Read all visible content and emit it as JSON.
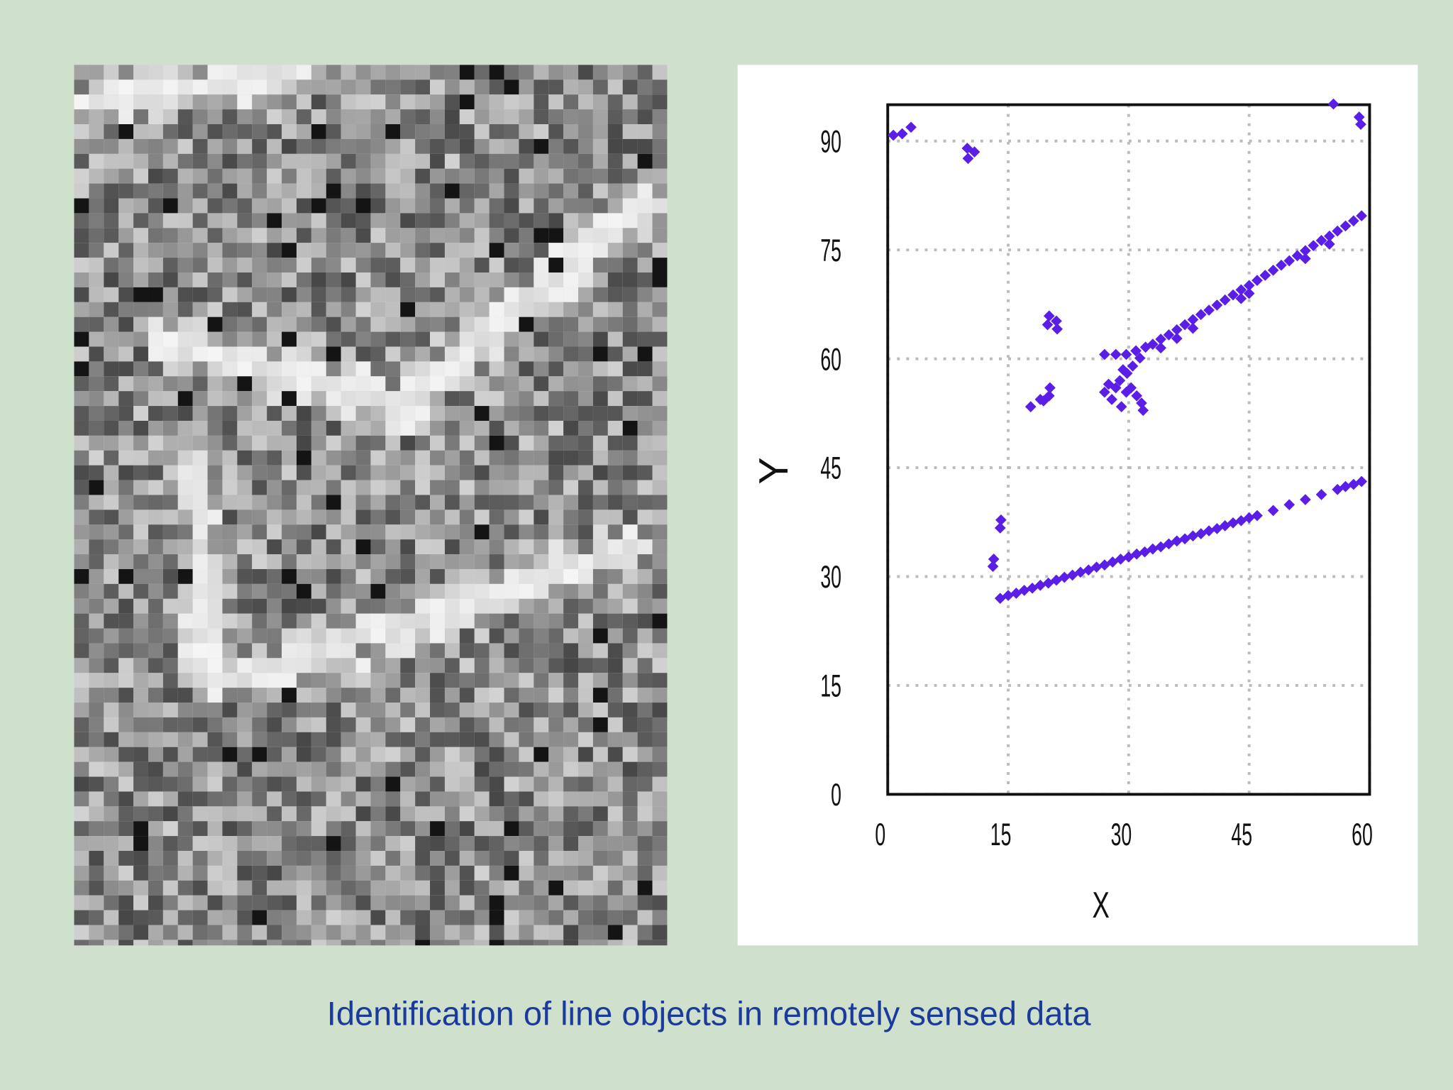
{
  "caption": "Identification of line objects in remotely sensed data",
  "chart_data": {
    "type": "scatter",
    "x_label": "X",
    "y_label": "Y",
    "xlim": [
      0,
      60
    ],
    "ylim": [
      0,
      95
    ],
    "xticks": [
      0,
      15,
      30,
      45,
      60
    ],
    "yticks": [
      0,
      15,
      30,
      45,
      60,
      75,
      90
    ],
    "grid": true,
    "color": "#5a1ee6",
    "x": [
      0.7,
      1.8,
      2.9,
      9.9,
      10.8,
      10.0,
      55.5,
      58.7,
      58.9,
      20.1,
      21.0,
      19.9,
      21.1,
      17.8,
      19.0,
      20.1,
      19.4,
      20.2,
      27.0,
      28.4,
      29.7,
      30.9,
      32.1,
      27.0,
      27.9,
      29.1,
      27.5,
      28.9,
      29.8,
      30.5,
      31.4,
      30.3,
      31.0,
      31.6,
      31.8,
      29.3,
      28.4,
      29.7,
      33,
      34,
      35,
      36,
      37,
      38,
      39,
      40,
      41,
      42,
      43,
      44,
      45,
      46,
      47,
      48,
      49,
      50,
      51,
      52,
      53,
      54,
      55,
      56,
      57,
      58,
      59,
      34,
      36,
      38,
      44,
      45,
      52,
      55,
      13.2,
      13.1,
      14.1,
      14.0,
      14,
      15,
      16,
      17,
      18,
      19,
      20,
      21,
      22,
      23,
      24,
      25,
      26,
      27,
      28,
      29,
      30,
      31,
      32,
      33,
      34,
      35,
      36,
      37,
      38,
      39,
      40,
      41,
      42,
      43,
      44,
      45,
      46,
      48,
      50,
      52,
      54,
      56,
      57,
      58,
      59
    ],
    "y": [
      90.8,
      91.0,
      91.9,
      89.0,
      88.5,
      87.6,
      95.1,
      93.3,
      92.3,
      65.9,
      65.2,
      64.7,
      64.1,
      53.4,
      54.4,
      54.9,
      54.2,
      56.0,
      60.6,
      60.6,
      60.6,
      61.1,
      61.6,
      55.4,
      54.4,
      53.4,
      56.5,
      57.0,
      58.0,
      59.0,
      60.1,
      56.0,
      54.9,
      53.9,
      52.9,
      58.5,
      56.0,
      55.4,
      62.0,
      62.7,
      63.3,
      64.0,
      64.7,
      65.4,
      66.1,
      66.7,
      67.4,
      68.1,
      68.8,
      69.5,
      70.1,
      70.8,
      71.5,
      72.2,
      72.9,
      73.5,
      74.2,
      74.9,
      75.6,
      76.3,
      76.9,
      77.6,
      78.3,
      79.0,
      79.7,
      61.5,
      62.8,
      64.2,
      68.3,
      69.0,
      73.8,
      75.8,
      32.4,
      31.4,
      37.8,
      36.7,
      27.0,
      27.4,
      27.7,
      28.1,
      28.4,
      28.8,
      29.1,
      29.5,
      29.9,
      30.2,
      30.6,
      30.9,
      31.3,
      31.6,
      32.0,
      32.4,
      32.7,
      33.1,
      33.4,
      33.8,
      34.1,
      34.5,
      34.9,
      35.2,
      35.6,
      35.9,
      36.3,
      36.6,
      37.0,
      37.4,
      37.7,
      38.1,
      38.4,
      39.1,
      39.9,
      40.6,
      41.3,
      42.0,
      42.4,
      42.7,
      43.1
    ]
  }
}
